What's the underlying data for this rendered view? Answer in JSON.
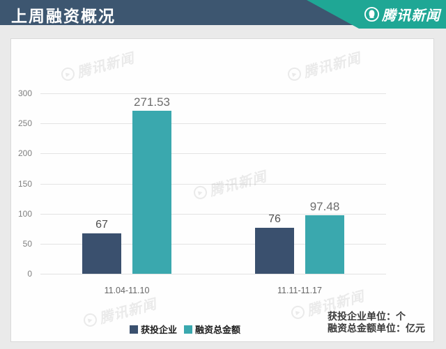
{
  "page": {
    "bg": "#eaeaea"
  },
  "header": {
    "title": "上周融资概况",
    "brand": "腾讯新闻",
    "bg": "#3d5670",
    "ribbon_color": "#1fa795"
  },
  "watermark": {
    "text": "腾讯新闻",
    "icon": "play-in-circle"
  },
  "chart_data": {
    "type": "bar",
    "title": "上周融资概况",
    "categories": [
      "11.04-11.10",
      "11.11-11.17"
    ],
    "series": [
      {
        "name": "获投企业",
        "unit": "个",
        "color": "#3a506e",
        "label_color": "#4e4e4e",
        "values": [
          67,
          76
        ]
      },
      {
        "name": "融资总金额",
        "unit": "亿元",
        "color": "#3aa8ae",
        "label_color": "#6d6d6d",
        "values": [
          271.53,
          97.48
        ]
      }
    ],
    "xlabel": "",
    "ylabel": "",
    "ylim": [
      0,
      300
    ],
    "ytick_step": 50,
    "grid": true,
    "legend_position": "bottom"
  },
  "notes": {
    "line1": "获投企业单位：个",
    "line2": "融资总金额单位：亿元"
  }
}
